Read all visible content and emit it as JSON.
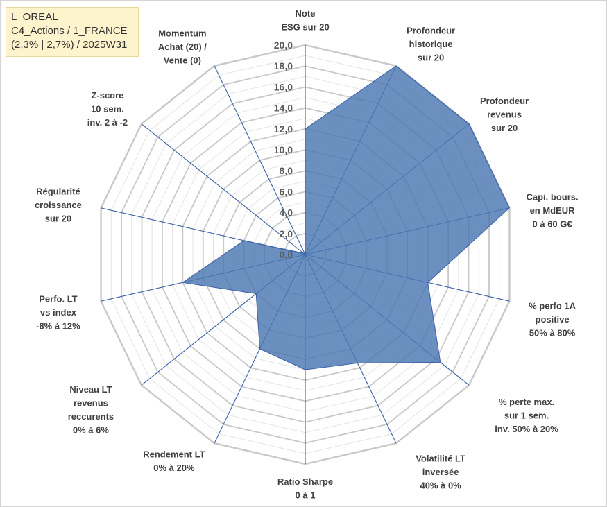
{
  "info": {
    "line1": "L_OREAL",
    "line2": "C4_Actions / 1_FRANCE",
    "line3": "(2,3% | 2,7%) / 2025W31"
  },
  "chart_data": {
    "type": "radar",
    "title": "",
    "rmin": 0,
    "rmax": 20,
    "tick_step": 2,
    "tick_labels": [
      "0,0",
      "2,0",
      "4,0",
      "6,0",
      "8,0",
      "10,0",
      "12,0",
      "14,0",
      "16,0",
      "18,0",
      "20,0"
    ],
    "grid": true,
    "colors": {
      "fill": "#4a77b2",
      "line": "#3b5fa8",
      "grid_major": "#c8c8c8",
      "grid_minor": "#e4e4e4",
      "spoke": "#3b5fa8"
    },
    "axes": [
      [
        "Note",
        "ESG sur 20"
      ],
      [
        "Profondeur",
        "historique",
        "sur 20"
      ],
      [
        "Profondeur",
        "revenus",
        "sur 20"
      ],
      [
        "Capi. bours.",
        "en MdEUR",
        "0 à 60 G€"
      ],
      [
        "% perfo 1A",
        "positive",
        "50% à 80%"
      ],
      [
        "% perte max.",
        "sur 1 sem.",
        "inv. 50% à 20%"
      ],
      [
        "Volatilité LT",
        "inversée",
        "40% à 0%"
      ],
      [
        "Ratio Sharpe",
        "0 à 1"
      ],
      [
        "Rendement LT",
        "0% à 20%"
      ],
      [
        "Niveau LT",
        "revenus",
        "reccurents",
        "0% à 6%"
      ],
      [
        "Perfo. LT",
        "vs index",
        "-8% à 12%"
      ],
      [
        "Régularité",
        "croissance",
        "sur 20"
      ],
      [
        "Z-score",
        "10 sem.",
        "inv. 2 à -2"
      ],
      [
        "Momentum",
        "Achat (20) /",
        "Vente (0)"
      ]
    ],
    "series": [
      {
        "values": [
          12,
          20,
          20,
          20,
          12,
          16.5,
          11.5,
          11,
          10,
          6,
          12,
          6,
          0.2,
          0
        ]
      }
    ]
  }
}
